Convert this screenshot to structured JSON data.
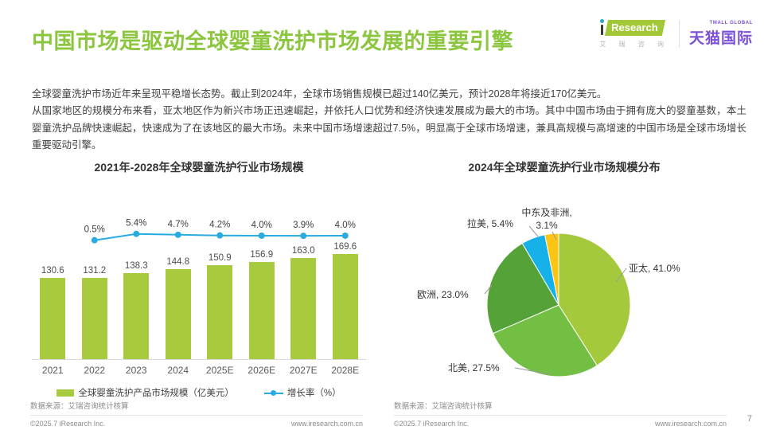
{
  "page": {
    "title": "中国市场是驱动全球婴童洗护市场发展的重要引擎",
    "page_number": "7"
  },
  "logos": {
    "iresearch_word": "Research",
    "iresearch_sub": "艾 瑞 咨 询",
    "tmall_small": "TMALL GLOBAL",
    "tmall_main": "天猫国际"
  },
  "intro": {
    "p1": "全球婴童洗护市场近年来呈现平稳增长态势。截止到2024年，全球市场销售规模已超过140亿美元，预计2028年将接近170亿美元。",
    "p2": "从国家地区的规模分布来看，亚太地区作为新兴市场正迅速崛起，并依托人口优势和经济快速发展成为最大的市场。其中中国市场由于拥有庞大的婴童基数，本土婴童洗护品牌快速崛起，快速成为了在该地区的最大市场。未来中国市场增速超过7.5%，明显高于全球市场增速，兼具高规模与高增速的中国市场是全球市场增长重要驱动引擎。"
  },
  "colors": {
    "accent_green": "#8cc63f",
    "bar_green": "#a8ca3f",
    "line_blue": "#29abe2",
    "tmall_purple": "#7b50d6"
  },
  "chart_data": [
    {
      "type": "bar",
      "title": "2021年-2028年全球婴童洗护行业市场规模",
      "categories": [
        "2021",
        "2022",
        "2023",
        "2024",
        "2025E",
        "2026E",
        "2027E",
        "2028E"
      ],
      "series": [
        {
          "name": "全球婴童洗护产品市场规模（亿美元）",
          "type": "bar",
          "color": "#a8ca3f",
          "values": [
            130.6,
            131.2,
            138.3,
            144.8,
            150.9,
            156.9,
            163.0,
            169.6
          ]
        },
        {
          "name": "增长率（%）",
          "type": "line",
          "color": "#29abe2",
          "values": [
            null,
            0.5,
            5.4,
            4.7,
            4.2,
            4.0,
            3.9,
            4.0
          ]
        }
      ],
      "ylabel": "亿美元",
      "legend_position": "bottom",
      "grid": false
    },
    {
      "type": "pie",
      "title": "2024年全球婴童洗护行业市场规模分布",
      "slices": [
        {
          "label": "亚太",
          "value": 41.0,
          "color": "#a5c93c"
        },
        {
          "label": "北美",
          "value": 27.5,
          "color": "#73bf44"
        },
        {
          "label": "欧洲",
          "value": 23.0,
          "color": "#55a338"
        },
        {
          "label": "拉美",
          "value": 5.4,
          "color": "#16b1e9"
        },
        {
          "label": "中东及非洲",
          "value": 3.1,
          "color": "#fdc513"
        }
      ]
    }
  ],
  "footer": {
    "source": "数据来源：艾瑞咨询统计核算",
    "copyright": "©2025.7 iResearch Inc.",
    "site": "www.iresearch.com.cn"
  }
}
